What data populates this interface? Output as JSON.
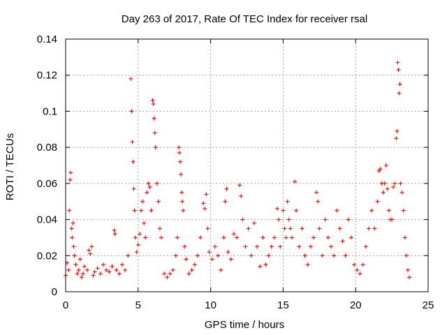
{
  "chart_data": {
    "type": "scatter",
    "title": "Day 263 of 2017, Rate Of TEC Index for receiver rsal",
    "xlabel": "GPS time / hours",
    "ylabel": "ROTI / TECUs",
    "xlim": [
      0,
      25
    ],
    "ylim": [
      0,
      0.14
    ],
    "xticks": [
      0,
      5,
      10,
      15,
      20,
      25
    ],
    "xtick_labels": [
      "0",
      "5",
      "10",
      "15",
      "20",
      "25"
    ],
    "yticks": [
      0,
      0.02,
      0.04,
      0.06,
      0.08,
      0.1,
      0.12,
      0.14
    ],
    "ytick_labels": [
      "0",
      "0.02",
      "0.04",
      "0.06",
      "0.08",
      "0.1",
      "0.12",
      "0.14"
    ],
    "grid": true,
    "marker": "+",
    "color": "#ff0000",
    "series": [
      {
        "name": "ROTI",
        "points": [
          [
            0.0,
            0.009
          ],
          [
            0.1,
            0.016
          ],
          [
            0.2,
            0.012
          ],
          [
            0.25,
            0.045
          ],
          [
            0.3,
            0.062
          ],
          [
            0.35,
            0.066
          ],
          [
            0.4,
            0.035
          ],
          [
            0.45,
            0.03
          ],
          [
            0.5,
            0.038
          ],
          [
            0.55,
            0.025
          ],
          [
            0.6,
            0.02
          ],
          [
            0.7,
            0.015
          ],
          [
            0.8,
            0.01
          ],
          [
            0.9,
            0.012
          ],
          [
            1.0,
            0.018
          ],
          [
            1.1,
            0.008
          ],
          [
            1.2,
            0.01
          ],
          [
            1.3,
            0.014
          ],
          [
            1.5,
            0.012
          ],
          [
            1.6,
            0.023
          ],
          [
            1.7,
            0.021
          ],
          [
            1.8,
            0.025
          ],
          [
            1.9,
            0.009
          ],
          [
            2.0,
            0.011
          ],
          [
            2.2,
            0.013
          ],
          [
            2.4,
            0.01
          ],
          [
            2.6,
            0.015
          ],
          [
            2.8,
            0.012
          ],
          [
            3.0,
            0.011
          ],
          [
            3.2,
            0.014
          ],
          [
            3.35,
            0.034
          ],
          [
            3.4,
            0.032
          ],
          [
            3.5,
            0.012
          ],
          [
            3.7,
            0.01
          ],
          [
            3.9,
            0.015
          ],
          [
            4.1,
            0.012
          ],
          [
            4.3,
            0.02
          ],
          [
            4.5,
            0.118
          ],
          [
            4.55,
            0.1
          ],
          [
            4.6,
            0.083
          ],
          [
            4.65,
            0.072
          ],
          [
            4.7,
            0.057
          ],
          [
            4.75,
            0.045
          ],
          [
            4.8,
            0.03
          ],
          [
            4.9,
            0.022
          ],
          [
            5.0,
            0.026
          ],
          [
            5.1,
            0.032
          ],
          [
            5.2,
            0.045
          ],
          [
            5.3,
            0.05
          ],
          [
            5.4,
            0.038
          ],
          [
            5.5,
            0.03
          ],
          [
            5.6,
            0.055
          ],
          [
            5.7,
            0.06
          ],
          [
            5.8,
            0.058
          ],
          [
            5.9,
            0.045
          ],
          [
            6.0,
            0.106
          ],
          [
            6.05,
            0.104
          ],
          [
            6.1,
            0.096
          ],
          [
            6.15,
            0.088
          ],
          [
            6.2,
            0.08
          ],
          [
            6.3,
            0.06
          ],
          [
            6.4,
            0.05
          ],
          [
            6.5,
            0.035
          ],
          [
            6.6,
            0.03
          ],
          [
            6.8,
            0.01
          ],
          [
            7.0,
            0.008
          ],
          [
            7.2,
            0.01
          ],
          [
            7.4,
            0.012
          ],
          [
            7.6,
            0.02
          ],
          [
            7.7,
            0.03
          ],
          [
            7.8,
            0.08
          ],
          [
            7.85,
            0.077
          ],
          [
            7.9,
            0.072
          ],
          [
            7.95,
            0.065
          ],
          [
            8.0,
            0.055
          ],
          [
            8.05,
            0.05
          ],
          [
            8.1,
            0.045
          ],
          [
            8.2,
            0.025
          ],
          [
            8.3,
            0.018
          ],
          [
            8.5,
            0.01
          ],
          [
            8.7,
            0.012
          ],
          [
            8.9,
            0.015
          ],
          [
            9.1,
            0.02
          ],
          [
            9.3,
            0.03
          ],
          [
            9.5,
            0.049
          ],
          [
            9.6,
            0.046
          ],
          [
            9.7,
            0.054
          ],
          [
            9.8,
            0.035
          ],
          [
            9.9,
            0.022
          ],
          [
            10.1,
            0.018
          ],
          [
            10.3,
            0.025
          ],
          [
            10.5,
            0.02
          ],
          [
            10.7,
            0.012
          ],
          [
            10.9,
            0.03
          ],
          [
            11.0,
            0.05
          ],
          [
            11.1,
            0.057
          ],
          [
            11.2,
            0.022
          ],
          [
            11.4,
            0.018
          ],
          [
            11.6,
            0.032
          ],
          [
            11.8,
            0.03
          ],
          [
            12.0,
            0.059
          ],
          [
            12.1,
            0.053
          ],
          [
            12.2,
            0.04
          ],
          [
            12.4,
            0.025
          ],
          [
            12.6,
            0.035
          ],
          [
            12.8,
            0.02
          ],
          [
            13.0,
            0.038
          ],
          [
            13.2,
            0.025
          ],
          [
            13.4,
            0.014
          ],
          [
            13.6,
            0.03
          ],
          [
            13.8,
            0.015
          ],
          [
            14.0,
            0.02
          ],
          [
            14.2,
            0.025
          ],
          [
            14.4,
            0.03
          ],
          [
            14.6,
            0.046
          ],
          [
            14.7,
            0.04
          ],
          [
            14.8,
            0.025
          ],
          [
            15.0,
            0.045
          ],
          [
            15.1,
            0.035
          ],
          [
            15.2,
            0.03
          ],
          [
            15.3,
            0.05
          ],
          [
            15.4,
            0.04
          ],
          [
            15.5,
            0.035
          ],
          [
            15.6,
            0.03
          ],
          [
            15.8,
            0.061
          ],
          [
            15.9,
            0.045
          ],
          [
            16.1,
            0.025
          ],
          [
            16.3,
            0.035
          ],
          [
            16.5,
            0.02
          ],
          [
            16.7,
            0.015
          ],
          [
            16.9,
            0.025
          ],
          [
            17.1,
            0.03
          ],
          [
            17.3,
            0.055
          ],
          [
            17.4,
            0.05
          ],
          [
            17.5,
            0.035
          ],
          [
            17.7,
            0.02
          ],
          [
            17.9,
            0.04
          ],
          [
            18.1,
            0.03
          ],
          [
            18.3,
            0.025
          ],
          [
            18.5,
            0.02
          ],
          [
            18.7,
            0.045
          ],
          [
            18.9,
            0.035
          ],
          [
            19.1,
            0.028
          ],
          [
            19.3,
            0.02
          ],
          [
            19.5,
            0.04
          ],
          [
            19.7,
            0.03
          ],
          [
            19.9,
            0.015
          ],
          [
            20.1,
            0.012
          ],
          [
            20.3,
            0.01
          ],
          [
            20.5,
            0.015
          ],
          [
            20.7,
            0.025
          ],
          [
            20.9,
            0.035
          ],
          [
            21.1,
            0.045
          ],
          [
            21.3,
            0.035
          ],
          [
            21.5,
            0.05
          ],
          [
            21.6,
            0.067
          ],
          [
            21.7,
            0.068
          ],
          [
            21.8,
            0.06
          ],
          [
            21.9,
            0.055
          ],
          [
            22.0,
            0.06
          ],
          [
            22.1,
            0.07
          ],
          [
            22.2,
            0.057
          ],
          [
            22.3,
            0.045
          ],
          [
            22.4,
            0.04
          ],
          [
            22.5,
            0.04
          ],
          [
            22.6,
            0.058
          ],
          [
            22.7,
            0.06
          ],
          [
            22.8,
            0.085
          ],
          [
            22.85,
            0.089
          ],
          [
            22.9,
            0.127
          ],
          [
            22.95,
            0.123
          ],
          [
            23.0,
            0.11
          ],
          [
            23.05,
            0.115
          ],
          [
            23.1,
            0.06
          ],
          [
            23.2,
            0.055
          ],
          [
            23.3,
            0.045
          ],
          [
            23.4,
            0.03
          ],
          [
            23.5,
            0.02
          ],
          [
            23.6,
            0.012
          ],
          [
            23.7,
            0.008
          ]
        ]
      }
    ]
  }
}
